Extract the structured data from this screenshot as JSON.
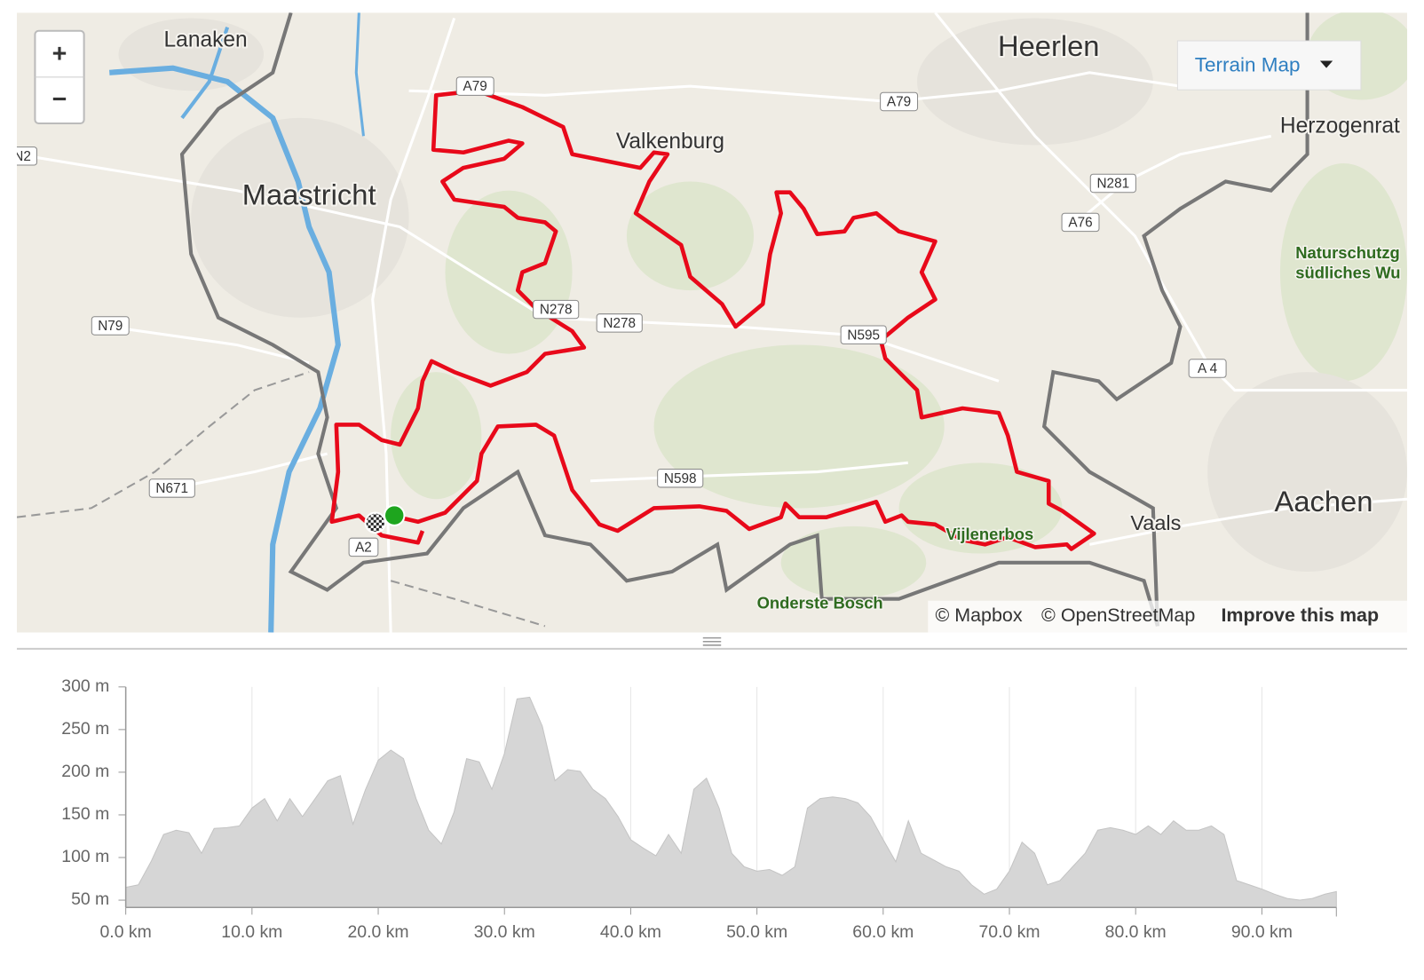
{
  "map": {
    "zoom_in": "+",
    "zoom_out": "−",
    "layer_menu": "Terrain Map",
    "places": [
      "Lanaken",
      "Maastricht",
      "Heerlen",
      "Valkenburg",
      "Herzogenrat",
      "Aachen",
      "Vaals"
    ],
    "areas": [
      "Naturschutzg",
      "südliches Wu",
      "Vijlenerbos",
      "Onderste Bosch"
    ],
    "road_labels": [
      "A79",
      "A79",
      "N2",
      "N79",
      "N671",
      "A2",
      "N278",
      "N278",
      "N598",
      "N595",
      "N281",
      "A76",
      "A 4"
    ],
    "attribution": [
      "© Mapbox",
      "© OpenStreetMap",
      "Improve this map"
    ]
  },
  "chart_data": {
    "type": "area",
    "color": "#d6d6d6",
    "x": [
      0,
      1,
      2,
      3,
      4,
      5,
      6,
      7,
      8,
      9,
      10,
      11,
      12,
      13,
      14,
      15,
      16,
      17,
      18,
      19,
      20,
      21,
      22,
      23,
      24,
      25,
      26,
      27,
      28,
      29,
      30,
      31,
      32,
      33,
      34,
      35,
      36,
      37,
      38,
      39,
      40,
      41,
      42,
      43,
      44,
      45,
      46,
      47,
      48,
      49,
      50,
      51,
      52,
      53,
      54,
      55,
      56,
      57,
      58,
      59,
      60,
      61,
      62,
      63,
      64,
      65,
      66,
      67,
      68,
      69,
      70,
      71,
      72,
      73,
      74,
      75,
      76,
      77,
      78,
      79,
      80,
      81,
      82,
      83,
      84,
      85,
      86,
      87,
      88,
      89,
      90,
      91,
      92,
      93,
      94,
      95,
      95.9
    ],
    "values": [
      65,
      68,
      95,
      127,
      132,
      129,
      105,
      134,
      135,
      137,
      158,
      169,
      143,
      169,
      148,
      169,
      190,
      196,
      139,
      180,
      214,
      226,
      216,
      169,
      132,
      116,
      153,
      216,
      212,
      180,
      222,
      286,
      288,
      254,
      190,
      203,
      201,
      180,
      169,
      148,
      121,
      111,
      102,
      127,
      105,
      180,
      193,
      158,
      105,
      89,
      84,
      86,
      79,
      89,
      158,
      169,
      171,
      169,
      164,
      148,
      121,
      95,
      143,
      105,
      97,
      89,
      84,
      68,
      57,
      63,
      84,
      118,
      105,
      68,
      73,
      89,
      105,
      132,
      135,
      132,
      127,
      137,
      127,
      143,
      132,
      132,
      137,
      127,
      73,
      68,
      63,
      57,
      52,
      50,
      52,
      57,
      60
    ],
    "xlim": [
      0,
      95.9
    ],
    "ylim": [
      41.5,
      300
    ],
    "xticks": [
      {
        "value": 0,
        "label": "0.0 km"
      },
      {
        "value": 10,
        "label": "10.0 km"
      },
      {
        "value": 20,
        "label": "20.0 km"
      },
      {
        "value": 30,
        "label": "30.0 km"
      },
      {
        "value": 40,
        "label": "40.0 km"
      },
      {
        "value": 50,
        "label": "50.0 km"
      },
      {
        "value": 60,
        "label": "60.0 km"
      },
      {
        "value": 70,
        "label": "70.0 km"
      },
      {
        "value": 80,
        "label": "80.0 km"
      },
      {
        "value": 90,
        "label": "90.0 km"
      }
    ],
    "yticks": [
      {
        "value": 50,
        "label": "50 m"
      },
      {
        "value": 100,
        "label": "100 m"
      },
      {
        "value": 150,
        "label": "150 m"
      },
      {
        "value": 200,
        "label": "200 m"
      },
      {
        "value": 250,
        "label": "250 m"
      },
      {
        "value": 300,
        "label": "300 m"
      }
    ],
    "xgrid": true
  }
}
